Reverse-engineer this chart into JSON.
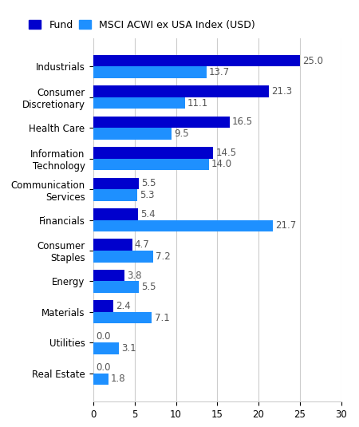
{
  "categories": [
    "Industrials",
    "Consumer\nDiscretionary",
    "Health Care",
    "Information\nTechnology",
    "Communication\nServices",
    "Financials",
    "Consumer\nStaples",
    "Energy",
    "Materials",
    "Utilities",
    "Real Estate"
  ],
  "fund_values": [
    25.0,
    21.3,
    16.5,
    14.5,
    5.5,
    5.4,
    4.7,
    3.8,
    2.4,
    0.0,
    0.0
  ],
  "index_values": [
    13.7,
    11.1,
    9.5,
    14.0,
    5.3,
    21.7,
    7.2,
    5.5,
    7.1,
    3.1,
    1.8
  ],
  "fund_color": "#0000CD",
  "index_color": "#1E90FF",
  "xlim": [
    0,
    30
  ],
  "xticks": [
    0,
    5,
    10,
    15,
    20,
    25,
    30
  ],
  "legend_fund": "Fund",
  "legend_index": "MSCI ACWI ex USA Index (USD)",
  "bar_height": 0.38,
  "label_fontsize": 8.5,
  "value_fontsize": 8.5,
  "legend_fontsize": 9,
  "grid_color": "#cccccc"
}
